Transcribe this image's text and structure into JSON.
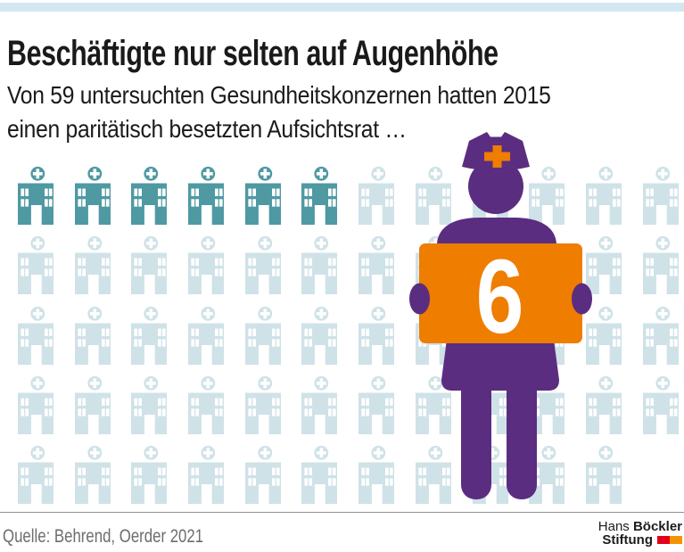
{
  "header": {
    "title": "Beschäftigte nur selten auf Augenhöhe",
    "subtitle_lines": [
      "Von 59 untersuchten Gesundheitskonzernen hatten 2015",
      "einen paritätisch besetzten Aufsichtsrat …"
    ]
  },
  "chart_data": {
    "type": "pictogram",
    "title": "Beschäftigte nur selten auf Augenhöhe",
    "subtitle": "Von 59 untersuchten Gesundheitskonzernen hatten 2015 einen paritätisch besetzten Aufsichtsrat …",
    "unit_icon": "hospital-building",
    "total_units": 59,
    "highlighted_units": 6,
    "highlighted_label": "6",
    "grid_columns": 12,
    "legend_position": "none",
    "year": "2015"
  },
  "figure": {
    "description": "nurse-holding-sign",
    "sign_value": "6"
  },
  "footer": {
    "source": "Quelle: Behrend, Oerder 2021",
    "logo": {
      "name_regular": "Hans",
      "name_bold": "Böckler",
      "line2": "Stiftung"
    }
  },
  "colors": {
    "topbar": "#d3e7f0",
    "hospital_highlight": "#4f99a3",
    "hospital_default": "#cfe2e7",
    "nurse_purple": "#5b2d81",
    "sign_orange": "#ee7d00",
    "sign_number": "#ffffff",
    "logo_red": "#e2001a",
    "logo_orange": "#f29400",
    "source_text": "#6d6d6d"
  }
}
